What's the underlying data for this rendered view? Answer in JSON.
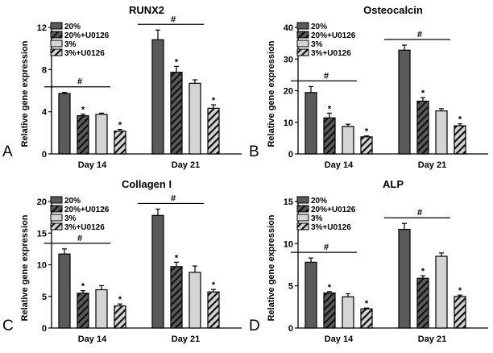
{
  "colors": {
    "c20": "#5a5a5a",
    "c20u": "#5a5a5a",
    "c3": "#d4d4d4",
    "c3u": "#d4d4d4",
    "axis": "#000000"
  },
  "chart_data": [
    {
      "type": "bar",
      "panel_letter": "A",
      "title": "RUNX2",
      "ylabel": "Relative gene expression",
      "ylim": [
        0,
        12
      ],
      "yticks": [
        0,
        4,
        8,
        12
      ],
      "categories": [
        "Day 14",
        "Day 21"
      ],
      "series": [
        {
          "name": "20%",
          "values": [
            5.73,
            10.83
          ],
          "errors": [
            0.1,
            0.92
          ],
          "hatched": false
        },
        {
          "name": "20%+U0126",
          "values": [
            3.62,
            7.75
          ],
          "errors": [
            0.15,
            0.55
          ],
          "hatched": true
        },
        {
          "name": "3%",
          "values": [
            3.75,
            6.7
          ],
          "errors": [
            0.12,
            0.33
          ],
          "hatched": false
        },
        {
          "name": "3%+U0126",
          "values": [
            2.17,
            4.33
          ],
          "errors": [
            0.15,
            0.33
          ],
          "hatched": true
        }
      ],
      "significance": {
        "hash": "#",
        "star": "*"
      },
      "legend": "top-left"
    },
    {
      "type": "bar",
      "panel_letter": "B",
      "title": "Osteocalcin",
      "ylabel": "Relative gene expression",
      "ylim": [
        0,
        40
      ],
      "yticks": [
        0,
        10,
        20,
        30,
        40
      ],
      "categories": [
        "Day 14",
        "Day 21"
      ],
      "series": [
        {
          "name": "20%",
          "values": [
            19.4,
            32.8
          ],
          "errors": [
            1.9,
            1.6
          ],
          "hatched": false
        },
        {
          "name": "20%+U0126",
          "values": [
            11.4,
            16.7
          ],
          "errors": [
            1.5,
            1.1
          ],
          "hatched": true
        },
        {
          "name": "3%",
          "values": [
            8.7,
            13.6
          ],
          "errors": [
            0.7,
            0.7
          ],
          "hatched": false
        },
        {
          "name": "3%+U0126",
          "values": [
            5.4,
            8.9
          ],
          "errors": [
            0.3,
            0.6
          ],
          "hatched": true
        }
      ],
      "significance": {
        "hash": "#",
        "star": "*"
      },
      "legend": "top-left"
    },
    {
      "type": "bar",
      "panel_letter": "C",
      "title": "Collagen I",
      "ylabel": "Relative gene expression",
      "ylim": [
        0,
        20
      ],
      "yticks": [
        0,
        5,
        10,
        15,
        20
      ],
      "categories": [
        "Day 14",
        "Day 21"
      ],
      "series": [
        {
          "name": "20%",
          "values": [
            11.7,
            17.8
          ],
          "errors": [
            0.8,
            1.0
          ],
          "hatched": false
        },
        {
          "name": "20%+U0126",
          "values": [
            5.5,
            9.7
          ],
          "errors": [
            0.4,
            0.7
          ],
          "hatched": true
        },
        {
          "name": "3%",
          "values": [
            6.05,
            8.8
          ],
          "errors": [
            0.65,
            1.0
          ],
          "hatched": false
        },
        {
          "name": "3%+U0126",
          "values": [
            3.5,
            5.7
          ],
          "errors": [
            0.3,
            0.4
          ],
          "hatched": true
        }
      ],
      "significance": {
        "hash": "#",
        "star": "*"
      },
      "legend": "top-left"
    },
    {
      "type": "bar",
      "panel_letter": "D",
      "title": "ALP",
      "ylabel": "Relative gene expression",
      "ylim": [
        0,
        15
      ],
      "yticks": [
        0,
        5,
        10,
        15
      ],
      "categories": [
        "Day 14",
        "Day 21"
      ],
      "series": [
        {
          "name": "20%",
          "values": [
            7.8,
            11.7
          ],
          "errors": [
            0.5,
            0.7
          ],
          "hatched": false
        },
        {
          "name": "20%+U0126",
          "values": [
            4.16,
            5.9
          ],
          "errors": [
            0.15,
            0.3
          ],
          "hatched": true
        },
        {
          "name": "3%",
          "values": [
            3.7,
            8.5
          ],
          "errors": [
            0.36,
            0.4
          ],
          "hatched": false
        },
        {
          "name": "3%+U0126",
          "values": [
            2.27,
            3.74
          ],
          "errors": [
            0.1,
            0.16
          ],
          "hatched": true
        }
      ],
      "significance": {
        "hash": "#",
        "star": "*"
      },
      "legend": "top-left"
    }
  ]
}
